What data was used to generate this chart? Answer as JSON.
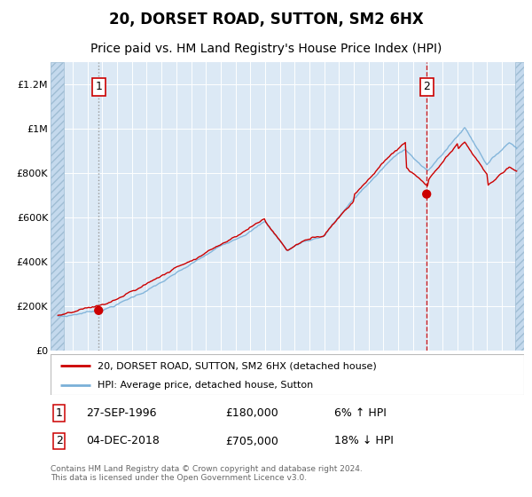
{
  "title": "20, DORSET ROAD, SUTTON, SM2 6HX",
  "subtitle": "Price paid vs. HM Land Registry's House Price Index (HPI)",
  "title_fontsize": 12,
  "subtitle_fontsize": 10,
  "x_start_year": 1994,
  "x_end_year": 2025,
  "y_min": 0,
  "y_max": 1300000,
  "y_ticks": [
    0,
    200000,
    400000,
    600000,
    800000,
    1000000,
    1200000
  ],
  "y_tick_labels": [
    "£0",
    "£200K",
    "£400K",
    "£600K",
    "£800K",
    "£1M",
    "£1.2M"
  ],
  "hpi_color": "#7ab0d8",
  "price_color": "#cc0000",
  "bg_color": "#dce9f5",
  "hatch_color": "#c4d9ed",
  "grid_color": "#ffffff",
  "transaction1_year": 1996.75,
  "transaction1_price": 180000,
  "transaction2_year": 2018.92,
  "transaction2_price": 705000,
  "legend_line1": "20, DORSET ROAD, SUTTON, SM2 6HX (detached house)",
  "legend_line2": "HPI: Average price, detached house, Sutton",
  "annotation1_label": "1",
  "annotation1_date": "27-SEP-1996",
  "annotation1_price": "£180,000",
  "annotation1_pct": "6% ↑ HPI",
  "annotation2_label": "2",
  "annotation2_date": "04-DEC-2018",
  "annotation2_price": "£705,000",
  "annotation2_pct": "18% ↓ HPI",
  "footer": "Contains HM Land Registry data © Crown copyright and database right 2024.\nThis data is licensed under the Open Government Licence v3.0."
}
